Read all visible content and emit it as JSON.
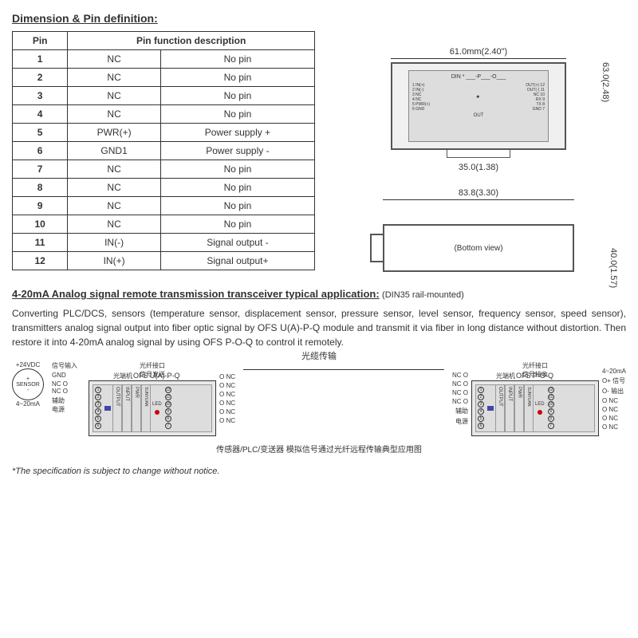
{
  "section1_title": "Dimension & Pin definition:",
  "table": {
    "headers": {
      "pin": "Pin",
      "func": "Pin function description"
    },
    "rows": [
      {
        "pin": "1",
        "name": "NC",
        "desc": "No pin"
      },
      {
        "pin": "2",
        "name": "NC",
        "desc": "No pin"
      },
      {
        "pin": "3",
        "name": "NC",
        "desc": "No pin"
      },
      {
        "pin": "4",
        "name": "NC",
        "desc": "No pin"
      },
      {
        "pin": "5",
        "name": "PWR(+)",
        "desc": "Power supply +"
      },
      {
        "pin": "6",
        "name": "GND1",
        "desc": "Power supply -"
      },
      {
        "pin": "7",
        "name": "NC",
        "desc": "No pin"
      },
      {
        "pin": "8",
        "name": "NC",
        "desc": "No pin"
      },
      {
        "pin": "9",
        "name": "NC",
        "desc": "No pin"
      },
      {
        "pin": "10",
        "name": "NC",
        "desc": "No pin"
      },
      {
        "pin": "11",
        "name": "IN(-)",
        "desc": "Signal output -"
      },
      {
        "pin": "12",
        "name": "IN(+)",
        "desc": "Signal output+"
      }
    ]
  },
  "dimensions": {
    "width_top": "61.0mm(2.40\")",
    "height_right": "63.0(2.48)",
    "mount_width": "35.0(1.38)",
    "bottom_width": "83.8(3.30)",
    "bottom_height": "40.0(1.57)",
    "bottom_view_label": "(Bottom view)",
    "din_header": "DIN * ___-P___-O___",
    "din_out": "OUT"
  },
  "app": {
    "title": "4-20mA Analog signal remote transmission transceiver typical application:",
    "subtitle": "(DIN35 rail-mounted)",
    "text": "Converting PLC/DCS, sensors (temperature sensor, displacement sensor, pressure sensor, level sensor, frequency sensor, speed sensor), transmitters analog signal output into fiber optic signal by OFS U(A)-P-Q module and transmit it via fiber in long distance without distortion. Then restore it into 4-20mA analog signal by using OFS P-O-Q to control it remotely.",
    "fiber_label": "光缆传输",
    "sensor": {
      "vdc": "+24VDC",
      "plus": "+",
      "label": "SENSOR",
      "minus": "-",
      "current": "4~20mA"
    },
    "fiber_sub1": "光纤接口\n信号发送",
    "fiber_sub2": "光纤接口\n信号接收",
    "module1_label": "光端机",
    "module1_name": "OFS U(A)-P-Q",
    "module2_label": "光端机",
    "module2_name": "OFS P-O-Q",
    "left_ann": {
      "signal_in": "信号输入",
      "gnd": "GND",
      "aux": "辅助",
      "power": "电源"
    },
    "right_out": {
      "current": "4~20mA",
      "signal": "O+ 信号",
      "signal2": "O- 输出",
      "aux": "辅助",
      "power": "电源"
    },
    "pins_nc": "NC O",
    "pins_onc": "O NC",
    "caption": "传感器/PLC/变送器 模拟信号通过光纤远程传输典型应用图"
  },
  "footnote": "*The specification is subject to change without notice."
}
